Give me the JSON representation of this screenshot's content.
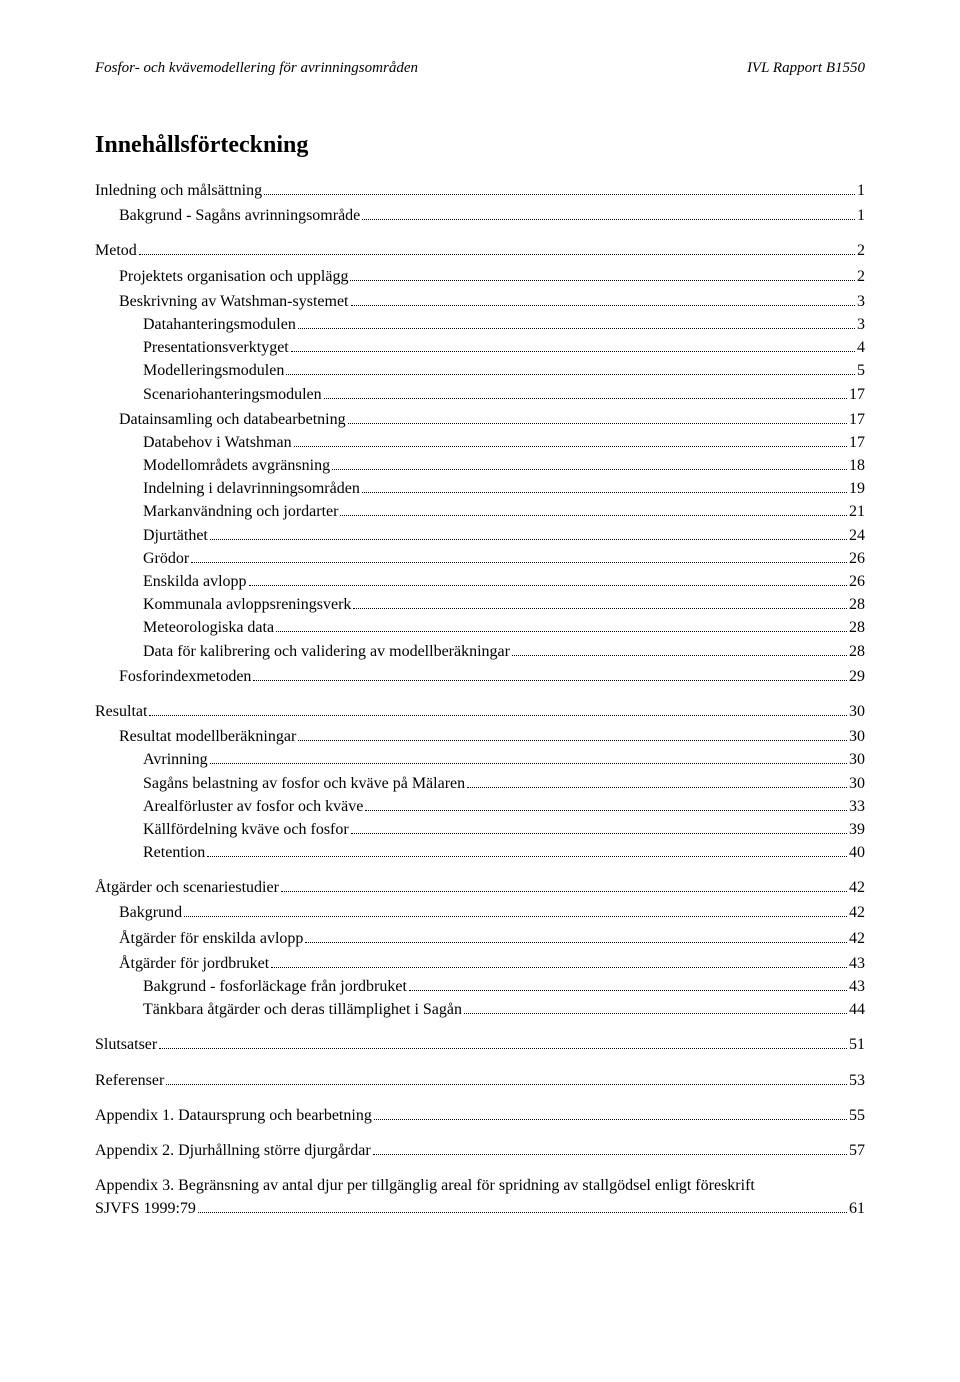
{
  "header": {
    "left": "Fosfor- och kvävemodellering för avrinningsområden",
    "right": "IVL Rapport B1550"
  },
  "toc": {
    "title": "Innehållsförteckning",
    "entries": [
      {
        "label": "Inledning och målsättning",
        "page": "1",
        "level": 0
      },
      {
        "label": "Bakgrund - Sagåns avrinningsområde",
        "page": "1",
        "level": 1
      },
      {
        "label": "Metod",
        "page": "2",
        "level": 0
      },
      {
        "label": "Projektets organisation och upplägg",
        "page": "2",
        "level": 1
      },
      {
        "label": "Beskrivning av Watshman-systemet",
        "page": "3",
        "level": 1
      },
      {
        "label": "Datahanteringsmodulen",
        "page": "3",
        "level": 2
      },
      {
        "label": "Presentationsverktyget",
        "page": "4",
        "level": 2
      },
      {
        "label": "Modelleringsmodulen",
        "page": "5",
        "level": 2
      },
      {
        "label": "Scenariohanteringsmodulen",
        "page": "17",
        "level": 2
      },
      {
        "label": "Datainsamling och databearbetning",
        "page": "17",
        "level": 1
      },
      {
        "label": "Databehov i Watshman",
        "page": "17",
        "level": 2
      },
      {
        "label": "Modellområdets avgränsning",
        "page": "18",
        "level": 2
      },
      {
        "label": "Indelning i delavrinningsområden",
        "page": "19",
        "level": 2
      },
      {
        "label": "Markanvändning och jordarter",
        "page": "21",
        "level": 2
      },
      {
        "label": "Djurtäthet",
        "page": "24",
        "level": 2
      },
      {
        "label": "Grödor",
        "page": "26",
        "level": 2
      },
      {
        "label": "Enskilda avlopp",
        "page": "26",
        "level": 2
      },
      {
        "label": "Kommunala avloppsreningsverk",
        "page": "28",
        "level": 2
      },
      {
        "label": "Meteorologiska data",
        "page": "28",
        "level": 2
      },
      {
        "label": "Data för kalibrering och validering av modellberäkningar",
        "page": "28",
        "level": 2
      },
      {
        "label": "Fosforindexmetoden",
        "page": "29",
        "level": 1
      },
      {
        "label": "Resultat",
        "page": "30",
        "level": 0
      },
      {
        "label": "Resultat modellberäkningar",
        "page": "30",
        "level": 1
      },
      {
        "label": "Avrinning",
        "page": "30",
        "level": 2
      },
      {
        "label": "Sagåns belastning av fosfor och kväve på Mälaren",
        "page": "30",
        "level": 2
      },
      {
        "label": "Arealförluster av fosfor och kväve",
        "page": "33",
        "level": 2
      },
      {
        "label": "Källfördelning kväve och fosfor",
        "page": "39",
        "level": 2
      },
      {
        "label": "Retention",
        "page": "40",
        "level": 2
      },
      {
        "label": "Åtgärder och scenariestudier",
        "page": "42",
        "level": 0
      },
      {
        "label": "Bakgrund",
        "page": "42",
        "level": 1
      },
      {
        "label": "Åtgärder för enskilda avlopp",
        "page": "42",
        "level": 1
      },
      {
        "label": "Åtgärder för jordbruket",
        "page": "43",
        "level": 1
      },
      {
        "label": "Bakgrund - fosforläckage från jordbruket",
        "page": "43",
        "level": 2
      },
      {
        "label": "Tänkbara åtgärder och deras tillämplighet i Sagån",
        "page": "44",
        "level": 2
      },
      {
        "label": "Slutsatser",
        "page": "51",
        "level": 0
      },
      {
        "label": "Referenser",
        "page": "53",
        "level": 0
      },
      {
        "label": "Appendix 1. Dataursprung och bearbetning",
        "page": "55",
        "level": 0
      },
      {
        "label": "Appendix 2. Djurhållning större djurgårdar",
        "page": "57",
        "level": 0
      },
      {
        "label": "Appendix 3. Begränsning av antal djur per tillgänglig areal för spridning av stallgödsel enligt föreskrift SJVFS 1999:79",
        "page": "61",
        "level": 0,
        "wrap": true
      }
    ]
  }
}
